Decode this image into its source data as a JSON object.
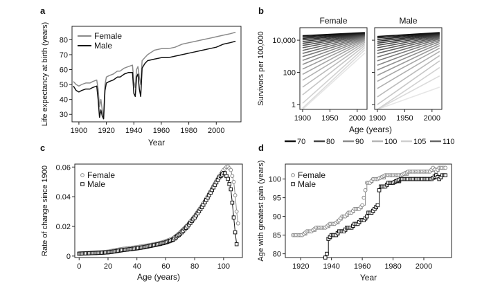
{
  "chart_data": [
    {
      "panel": "a",
      "type": "line",
      "title": "",
      "xlabel": "Year",
      "ylabel": "Life expectancy at birth (years)",
      "xlim": [
        1895,
        2018
      ],
      "ylim": [
        25,
        89
      ],
      "xticks": [
        1900,
        1920,
        1940,
        1960,
        1980,
        2000
      ],
      "yticks": [
        30,
        40,
        50,
        60,
        70,
        80
      ],
      "legend_position": "top-left",
      "series": [
        {
          "name": "Female",
          "color": "#8a8a8a",
          "points": [
            [
              1896,
              52
            ],
            [
              1898,
              50
            ],
            [
              1900,
              49
            ],
            [
              1902,
              50
            ],
            [
              1905,
              51
            ],
            [
              1908,
              51
            ],
            [
              1910,
              52
            ],
            [
              1913,
              53
            ],
            [
              1914,
              47
            ],
            [
              1915,
              35
            ],
            [
              1916,
              40
            ],
            [
              1917,
              33
            ],
            [
              1918,
              29
            ],
            [
              1919,
              50
            ],
            [
              1920,
              55
            ],
            [
              1922,
              56
            ],
            [
              1925,
              57
            ],
            [
              1928,
              59
            ],
            [
              1930,
              59
            ],
            [
              1933,
              61
            ],
            [
              1936,
              62
            ],
            [
              1939,
              63
            ],
            [
              1940,
              52
            ],
            [
              1941,
              48
            ],
            [
              1942,
              60
            ],
            [
              1943,
              62
            ],
            [
              1944,
              55
            ],
            [
              1945,
              50
            ],
            [
              1946,
              66
            ],
            [
              1948,
              68
            ],
            [
              1950,
              70
            ],
            [
              1955,
              73
            ],
            [
              1960,
              74
            ],
            [
              1965,
              74
            ],
            [
              1970,
              75
            ],
            [
              1975,
              77
            ],
            [
              1980,
              78
            ],
            [
              1985,
              79
            ],
            [
              1990,
              80
            ],
            [
              1995,
              81
            ],
            [
              2000,
              82
            ],
            [
              2005,
              83
            ],
            [
              2010,
              84
            ],
            [
              2014,
              85
            ]
          ]
        },
        {
          "name": "Male",
          "color": "#111111",
          "points": [
            [
              1896,
              49
            ],
            [
              1898,
              46
            ],
            [
              1900,
              45
            ],
            [
              1902,
              46
            ],
            [
              1905,
              47
            ],
            [
              1908,
              47
            ],
            [
              1910,
              48
            ],
            [
              1913,
              49
            ],
            [
              1914,
              40
            ],
            [
              1915,
              28
            ],
            [
              1916,
              33
            ],
            [
              1917,
              29
            ],
            [
              1918,
              27
            ],
            [
              1919,
              46
            ],
            [
              1920,
              51
            ],
            [
              1922,
              52
            ],
            [
              1925,
              53
            ],
            [
              1928,
              55
            ],
            [
              1930,
              55
            ],
            [
              1933,
              57
            ],
            [
              1936,
              58
            ],
            [
              1939,
              58
            ],
            [
              1940,
              44
            ],
            [
              1941,
              42
            ],
            [
              1942,
              55
            ],
            [
              1943,
              57
            ],
            [
              1944,
              47
            ],
            [
              1945,
              42
            ],
            [
              1946,
              61
            ],
            [
              1948,
              64
            ],
            [
              1950,
              66
            ],
            [
              1955,
              67
            ],
            [
              1960,
              68
            ],
            [
              1965,
              68
            ],
            [
              1970,
              69
            ],
            [
              1975,
              70
            ],
            [
              1980,
              71
            ],
            [
              1985,
              72
            ],
            [
              1990,
              73
            ],
            [
              1995,
              74
            ],
            [
              2000,
              75
            ],
            [
              2005,
              77
            ],
            [
              2010,
              78
            ],
            [
              2014,
              79
            ]
          ]
        }
      ]
    },
    {
      "panel": "b",
      "type": "line",
      "facets": [
        "Female",
        "Male"
      ],
      "xlabel": "Age (years)",
      "ylabel": "Survivors per 100,000",
      "yscale": "log",
      "xlim": [
        1895,
        2018
      ],
      "ylim": [
        0.5,
        60000
      ],
      "xticks": [
        1900,
        1950,
        2000
      ],
      "ytick_labels": [
        "1",
        "100",
        "10,000"
      ],
      "ytick_values": [
        1,
        100,
        10000
      ],
      "legend_position": "bottom",
      "legend": [
        {
          "label": "70",
          "color": "#111111"
        },
        {
          "label": "80",
          "color": "#444444"
        },
        {
          "label": "90",
          "color": "#8a8a8a"
        },
        {
          "label": "100",
          "color": "#b5b5b5"
        },
        {
          "label": "105",
          "color": "#cfcfcf"
        },
        {
          "label": "110",
          "color": "#666666"
        }
      ],
      "curves": {
        "x": [
          1900,
          2014
        ],
        "ages": [
          70,
          72,
          74,
          76,
          78,
          80,
          82,
          84,
          86,
          88,
          90,
          92,
          94,
          96,
          98,
          100,
          102,
          104,
          106,
          108,
          110
        ],
        "female": {
          "start": [
            19000,
            16000,
            13000,
            10500,
            8300,
            6300,
            4700,
            3400,
            2300,
            1500,
            950,
            560,
            310,
            160,
            75,
            32,
            12,
            4,
            1.2,
            0.6,
            0.5
          ],
          "end": [
            30000,
            28500,
            27000,
            25500,
            24000,
            22500,
            21000,
            19500,
            18000,
            16500,
            15000,
            13500,
            12000,
            10500,
            9000,
            7500,
            6000,
            4700,
            3500,
            2500,
            1600
          ]
        },
        "male": {
          "start": [
            17000,
            14000,
            11000,
            8500,
            6500,
            4800,
            3400,
            2300,
            1500,
            900,
            520,
            280,
            140,
            65,
            28,
            10,
            3,
            1,
            0.5,
            0.5,
            0.5
          ],
          "end": [
            30000,
            28000,
            26000,
            24000,
            22000,
            20000,
            18000,
            16000,
            14000,
            12000,
            10000,
            8000,
            6200,
            4600,
            3200,
            2000,
            1100,
            520,
            200,
            60,
            12
          ]
        }
      }
    },
    {
      "panel": "c",
      "type": "line",
      "xlabel": "Age (years)",
      "ylabel": "Rate of change since 1900",
      "xlim": [
        -3,
        113
      ],
      "ylim": [
        -0.001,
        0.062
      ],
      "xticks": [
        0,
        20,
        40,
        60,
        80,
        100
      ],
      "yticks": [
        0,
        0.02,
        0.04,
        0.06
      ],
      "ytick_labels": [
        "0",
        "0.02",
        "0.04",
        "0.06"
      ],
      "legend_position": "top-left",
      "series": [
        {
          "name": "Female",
          "marker": "circle",
          "color": "#8a8a8a",
          "points": [
            [
              0,
              0.0018
            ],
            [
              5,
              0.002
            ],
            [
              10,
              0.0024
            ],
            [
              15,
              0.0026
            ],
            [
              20,
              0.003
            ],
            [
              25,
              0.004
            ],
            [
              30,
              0.0048
            ],
            [
              35,
              0.0054
            ],
            [
              40,
              0.006
            ],
            [
              45,
              0.0068
            ],
            [
              50,
              0.0076
            ],
            [
              55,
              0.0086
            ],
            [
              60,
              0.01
            ],
            [
              65,
              0.012
            ],
            [
              70,
              0.016
            ],
            [
              75,
              0.021
            ],
            [
              80,
              0.027
            ],
            [
              85,
              0.034
            ],
            [
              90,
              0.042
            ],
            [
              94,
              0.049
            ],
            [
              97,
              0.054
            ],
            [
              100,
              0.058
            ],
            [
              102,
              0.06
            ],
            [
              103,
              0.0603
            ],
            [
              105,
              0.058
            ],
            [
              107,
              0.05
            ],
            [
              108,
              0.041
            ],
            [
              109,
              0.03
            ],
            [
              110,
              0.022
            ]
          ]
        },
        {
          "name": "Male",
          "marker": "square",
          "color": "#111111",
          "points": [
            [
              0,
              0.0016
            ],
            [
              5,
              0.0018
            ],
            [
              10,
              0.002
            ],
            [
              15,
              0.0022
            ],
            [
              20,
              0.0025
            ],
            [
              25,
              0.0032
            ],
            [
              30,
              0.004
            ],
            [
              35,
              0.0046
            ],
            [
              40,
              0.0052
            ],
            [
              45,
              0.006
            ],
            [
              50,
              0.007
            ],
            [
              55,
              0.008
            ],
            [
              60,
              0.0092
            ],
            [
              65,
              0.011
            ],
            [
              70,
              0.015
            ],
            [
              75,
              0.02
            ],
            [
              80,
              0.026
            ],
            [
              85,
              0.033
            ],
            [
              90,
              0.041
            ],
            [
              94,
              0.048
            ],
            [
              97,
              0.053
            ],
            [
              100,
              0.056
            ],
            [
              101,
              0.0558
            ],
            [
              103,
              0.052
            ],
            [
              105,
              0.045
            ],
            [
              106,
              0.036
            ],
            [
              107,
              0.026
            ],
            [
              108,
              0.016
            ],
            [
              109,
              0.008
            ]
          ]
        }
      ]
    },
    {
      "panel": "d",
      "type": "line",
      "xlabel": "Year",
      "ylabel": "Age with greatest gain (years)",
      "xlim": [
        1910,
        2018
      ],
      "ylim": [
        79,
        104
      ],
      "xticks": [
        1920,
        1940,
        1960,
        1980,
        2000
      ],
      "yticks": [
        80,
        85,
        90,
        95,
        100
      ],
      "legend_position": "top-left",
      "series": [
        {
          "name": "Female",
          "marker": "circle",
          "color": "#8a8a8a",
          "points": [
            [
              1915,
              85
            ],
            [
              1918,
              85
            ],
            [
              1921,
              85
            ],
            [
              1924,
              86
            ],
            [
              1927,
              86
            ],
            [
              1930,
              87
            ],
            [
              1933,
              87
            ],
            [
              1936,
              87
            ],
            [
              1939,
              88
            ],
            [
              1942,
              88
            ],
            [
              1945,
              89
            ],
            [
              1947,
              90
            ],
            [
              1949,
              90
            ],
            [
              1951,
              91
            ],
            [
              1953,
              91
            ],
            [
              1955,
              92
            ],
            [
              1958,
              92
            ],
            [
              1960,
              93
            ],
            [
              1962,
              97
            ],
            [
              1963,
              99
            ],
            [
              1965,
              99
            ],
            [
              1967,
              100
            ],
            [
              1970,
              100
            ],
            [
              1975,
              101
            ],
            [
              1980,
              101
            ],
            [
              1985,
              101
            ],
            [
              1990,
              102
            ],
            [
              1995,
              102
            ],
            [
              2000,
              102
            ],
            [
              2004,
              102
            ],
            [
              2006,
              103
            ],
            [
              2008,
              102
            ],
            [
              2010,
              103
            ],
            [
              2014,
              103
            ]
          ]
        },
        {
          "name": "Male",
          "marker": "square",
          "color": "#111111",
          "points": [
            [
              1936,
              79
            ],
            [
              1937,
              80
            ],
            [
              1938,
              84
            ],
            [
              1940,
              85
            ],
            [
              1943,
              85
            ],
            [
              1945,
              86
            ],
            [
              1948,
              86
            ],
            [
              1950,
              87
            ],
            [
              1953,
              87
            ],
            [
              1955,
              88
            ],
            [
              1957,
              88
            ],
            [
              1959,
              89
            ],
            [
              1961,
              89
            ],
            [
              1963,
              90
            ],
            [
              1964,
              91
            ],
            [
              1966,
              91
            ],
            [
              1968,
              92
            ],
            [
              1970,
              93
            ],
            [
              1971,
              97
            ],
            [
              1972,
              98
            ],
            [
              1975,
              98
            ],
            [
              1977,
              99
            ],
            [
              1980,
              99
            ],
            [
              1985,
              100
            ],
            [
              1990,
              100
            ],
            [
              1995,
              100
            ],
            [
              2000,
              100
            ],
            [
              2005,
              100
            ],
            [
              2008,
              101
            ],
            [
              2010,
              100
            ],
            [
              2012,
              101
            ],
            [
              2014,
              101
            ]
          ]
        }
      ]
    }
  ],
  "panel_labels": [
    "a",
    "b",
    "c",
    "d"
  ],
  "facet_titles": [
    "Female",
    "Male"
  ]
}
